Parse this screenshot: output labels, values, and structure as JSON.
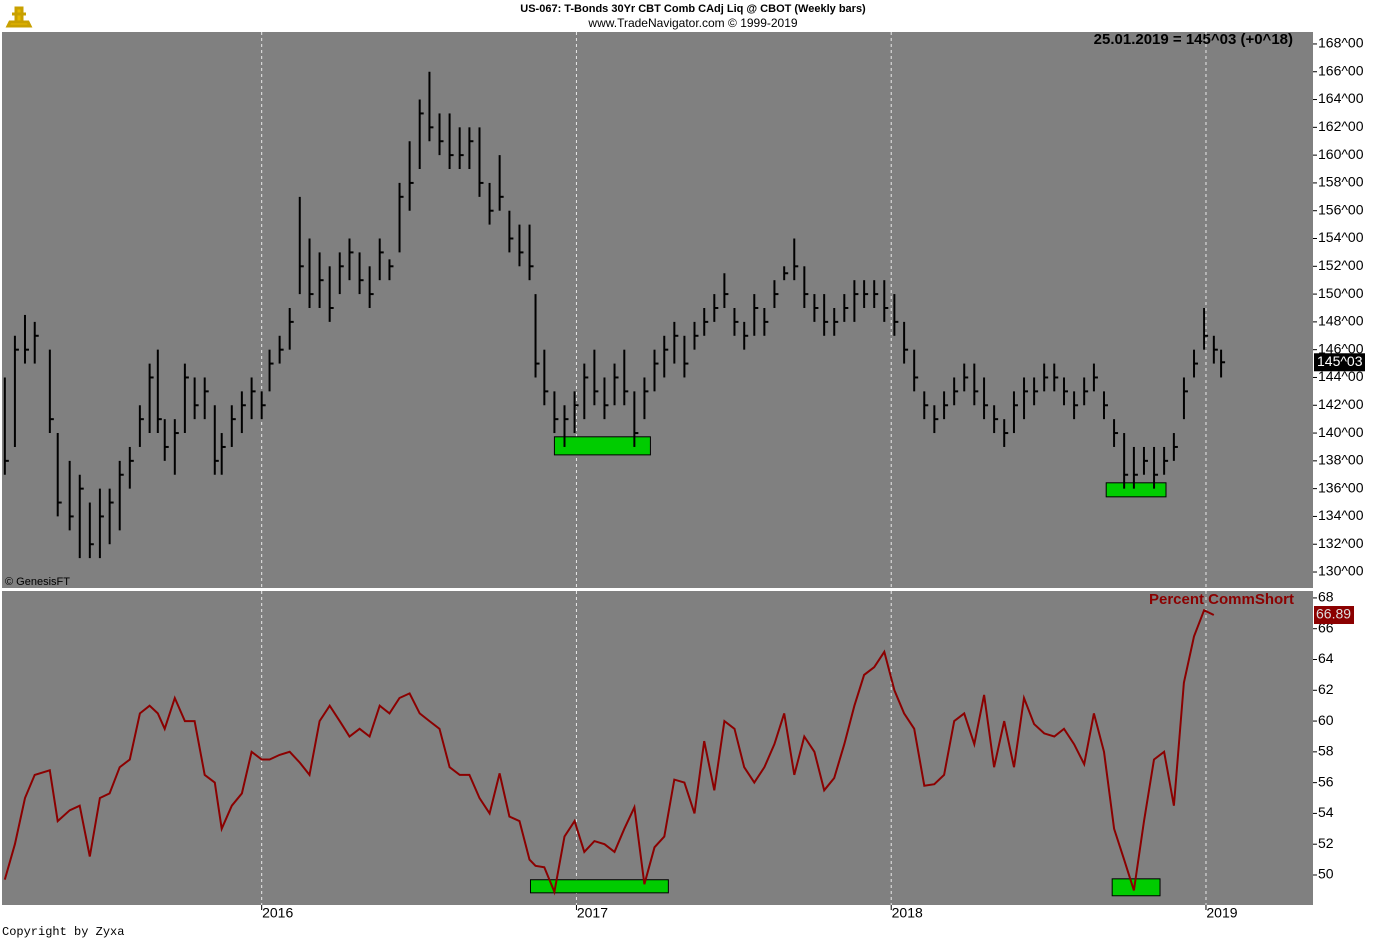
{
  "chart_data": [
    {
      "type": "ohlc",
      "title": "US-067:  T-Bonds 30Yr CBT Comb CAdj Liq @ CBOT  (Weekly bars)",
      "subtitle": "www.TradeNavigator.com © 1999-2019",
      "readout": "25.01.2019 = 145^03 (+0^18)",
      "watermark": "© GenesisFT",
      "color": "#000000",
      "x": [
        2015.184,
        2015.216,
        2015.248,
        2015.279,
        2015.327,
        2015.352,
        2015.39,
        2015.422,
        2015.454,
        2015.486,
        2015.517,
        2015.549,
        2015.581,
        2015.613,
        2015.644,
        2015.67,
        2015.692,
        2015.724,
        2015.756,
        2015.787,
        2015.819,
        2015.851,
        2015.873,
        2015.905,
        2015.937,
        2015.968,
        2016.0,
        2016.025,
        2016.057,
        2016.089,
        2016.121,
        2016.152,
        2016.184,
        2016.216,
        2016.248,
        2016.279,
        2016.311,
        2016.343,
        2016.375,
        2016.406,
        2016.438,
        2016.47,
        2016.502,
        2016.533,
        2016.565,
        2016.597,
        2016.629,
        2016.66,
        2016.692,
        2016.724,
        2016.756,
        2016.787,
        2016.819,
        2016.851,
        2016.87,
        2016.898,
        2016.93,
        2016.962,
        2016.994,
        2017.025,
        2017.057,
        2017.089,
        2017.121,
        2017.152,
        2017.184,
        2017.216,
        2017.248,
        2017.279,
        2017.311,
        2017.343,
        2017.375,
        2017.406,
        2017.438,
        2017.47,
        2017.502,
        2017.533,
        2017.565,
        2017.597,
        2017.629,
        2017.66,
        2017.692,
        2017.724,
        2017.756,
        2017.787,
        2017.819,
        2017.851,
        2017.883,
        2017.914,
        2017.946,
        2017.978,
        2018.01,
        2018.041,
        2018.073,
        2018.105,
        2018.137,
        2018.168,
        2018.2,
        2018.232,
        2018.264,
        2018.295,
        2018.327,
        2018.359,
        2018.39,
        2018.422,
        2018.454,
        2018.486,
        2018.518,
        2018.549,
        2018.581,
        2018.613,
        2018.644,
        2018.676,
        2018.708,
        2018.74,
        2018.771,
        2018.803,
        2018.835,
        2018.867,
        2018.898,
        2018.93,
        2018.962,
        2018.994,
        2019.025,
        2019.048
      ],
      "high": [
        144,
        147,
        148.5,
        148,
        146,
        140,
        138,
        137,
        135,
        136,
        136,
        138,
        139,
        142,
        145,
        146,
        141,
        141,
        145,
        144,
        144,
        142,
        140,
        142,
        143,
        144,
        143,
        146,
        147,
        149,
        157,
        154,
        153,
        152,
        153,
        154,
        153,
        152,
        154,
        152.5,
        158,
        161,
        164,
        166,
        163,
        163,
        162,
        162,
        162,
        158,
        160,
        156,
        155,
        155,
        150,
        146,
        143,
        142,
        143,
        145,
        146,
        144,
        145,
        146,
        143,
        144,
        146,
        147,
        148,
        147,
        148,
        149,
        150,
        151.5,
        149,
        148,
        150,
        149,
        151,
        152,
        154,
        152,
        150,
        150,
        149,
        150,
        151,
        151,
        151,
        151,
        150,
        148,
        146,
        143,
        142,
        143,
        144,
        145,
        145,
        144,
        142,
        141,
        143,
        144,
        144,
        145,
        145,
        144,
        143,
        144,
        145,
        143,
        141,
        140,
        139,
        139,
        139,
        139,
        140,
        144,
        146,
        149,
        147,
        146
      ],
      "low": [
        137,
        139,
        145,
        145,
        140,
        134,
        133,
        131,
        131,
        131,
        132,
        133,
        136,
        139,
        140,
        140,
        138,
        137,
        140,
        141,
        141,
        137,
        137,
        139,
        140,
        141,
        141,
        143,
        145,
        146,
        150,
        149,
        149,
        148,
        150,
        151,
        150,
        149,
        151,
        151,
        153,
        156,
        159,
        161,
        160,
        159,
        159,
        159,
        157,
        155,
        156,
        153,
        152,
        151,
        144,
        142,
        140,
        139,
        140,
        141,
        142,
        141,
        142,
        142,
        139,
        141,
        143,
        144,
        145,
        144,
        146,
        147,
        148,
        149,
        147,
        146,
        147,
        147,
        149,
        151,
        151,
        149,
        148,
        147,
        147,
        148,
        148,
        149,
        149,
        148,
        147,
        145,
        143,
        141,
        140,
        141,
        142,
        143,
        142,
        141,
        140,
        139,
        140,
        141,
        142,
        143,
        143,
        142,
        141,
        142,
        143,
        141,
        139,
        136,
        136,
        137,
        136,
        137,
        138,
        141,
        144,
        146,
        145,
        144
      ],
      "close": [
        138,
        146,
        146,
        147,
        141,
        135,
        134,
        136,
        132,
        134,
        135,
        137,
        138,
        141,
        144,
        141,
        139,
        140,
        144,
        142,
        143,
        138,
        139,
        141,
        142,
        143,
        142,
        145,
        146,
        148,
        152,
        150,
        151,
        149,
        152,
        153,
        151,
        150,
        153,
        152,
        157,
        158,
        163,
        162,
        161,
        160,
        160,
        161,
        158,
        156,
        157,
        154,
        153,
        152,
        145,
        143,
        141,
        141,
        142,
        144,
        143,
        142,
        144,
        143,
        140,
        143,
        145,
        146,
        147,
        145,
        147,
        148,
        149,
        150,
        148,
        147,
        149,
        148,
        150,
        151.5,
        152,
        150,
        149,
        148,
        148,
        149,
        150,
        150,
        150,
        149,
        148,
        146,
        144,
        142,
        141,
        142,
        143,
        144,
        143,
        142,
        141,
        140,
        142,
        143,
        143,
        144,
        144,
        143,
        142,
        143,
        144,
        142,
        140,
        137,
        137,
        138,
        137,
        138,
        139,
        143,
        145,
        147,
        146,
        145.09375
      ],
      "last_value": {
        "value": 145.09375,
        "label": "145^03"
      },
      "xlim": [
        2015.175,
        2019.34
      ],
      "xticks": [
        2016,
        2017,
        2018,
        2019
      ],
      "ylim": [
        128.85,
        168.86
      ],
      "yticks": [
        {
          "value": 130,
          "label": "130^00"
        },
        {
          "value": 132,
          "label": "132^00"
        },
        {
          "value": 134,
          "label": "134^00"
        },
        {
          "value": 136,
          "label": "136^00"
        },
        {
          "value": 138,
          "label": "138^00"
        },
        {
          "value": 140,
          "label": "140^00"
        },
        {
          "value": 142,
          "label": "142^00"
        },
        {
          "value": 144,
          "label": "144^00"
        },
        {
          "value": 146,
          "label": "146^00"
        },
        {
          "value": 148,
          "label": "148^00"
        },
        {
          "value": 150,
          "label": "150^00"
        },
        {
          "value": 152,
          "label": "152^00"
        },
        {
          "value": 154,
          "label": "154^00"
        },
        {
          "value": 156,
          "label": "156^00"
        },
        {
          "value": 158,
          "label": "158^00"
        },
        {
          "value": 160,
          "label": "160^00"
        },
        {
          "value": 162,
          "label": "162^00"
        },
        {
          "value": 164,
          "label": "164^00"
        },
        {
          "value": 166,
          "label": "166^00"
        },
        {
          "value": 168,
          "label": "168^00"
        }
      ],
      "highlight_color": "#00cc00",
      "highlights": [
        {
          "x": [
            2016.93,
            2017.235
          ],
          "y": [
            138.43,
            139.73
          ]
        },
        {
          "x": [
            2018.683,
            2018.873
          ],
          "y": [
            135.41,
            136.42
          ]
        }
      ]
    },
    {
      "type": "line",
      "label": "Percent CommShort",
      "color": "#8b0000",
      "x": [
        2015.184,
        2015.216,
        2015.248,
        2015.279,
        2015.327,
        2015.352,
        2015.39,
        2015.422,
        2015.454,
        2015.486,
        2015.517,
        2015.549,
        2015.581,
        2015.613,
        2015.644,
        2015.67,
        2015.692,
        2015.724,
        2015.756,
        2015.787,
        2015.819,
        2015.851,
        2015.873,
        2015.905,
        2015.937,
        2015.968,
        2016.0,
        2016.025,
        2016.057,
        2016.089,
        2016.121,
        2016.152,
        2016.184,
        2016.216,
        2016.248,
        2016.279,
        2016.311,
        2016.343,
        2016.375,
        2016.406,
        2016.438,
        2016.47,
        2016.502,
        2016.533,
        2016.565,
        2016.597,
        2016.629,
        2016.66,
        2016.692,
        2016.724,
        2016.756,
        2016.787,
        2016.819,
        2016.851,
        2016.87,
        2016.898,
        2016.93,
        2016.962,
        2016.994,
        2017.025,
        2017.057,
        2017.089,
        2017.121,
        2017.152,
        2017.184,
        2017.216,
        2017.248,
        2017.279,
        2017.311,
        2017.343,
        2017.375,
        2017.406,
        2017.438,
        2017.47,
        2017.502,
        2017.533,
        2017.565,
        2017.597,
        2017.629,
        2017.66,
        2017.692,
        2017.724,
        2017.756,
        2017.787,
        2017.819,
        2017.851,
        2017.883,
        2017.914,
        2017.946,
        2017.978,
        2018.01,
        2018.041,
        2018.073,
        2018.105,
        2018.137,
        2018.168,
        2018.2,
        2018.232,
        2018.264,
        2018.295,
        2018.327,
        2018.359,
        2018.39,
        2018.422,
        2018.454,
        2018.486,
        2018.518,
        2018.549,
        2018.581,
        2018.613,
        2018.644,
        2018.676,
        2018.708,
        2018.74,
        2018.771,
        2018.803,
        2018.835,
        2018.867,
        2018.898,
        2018.93,
        2018.962,
        2018.994,
        2019.025,
        2019.048
      ],
      "values": [
        49.7,
        52,
        55,
        56.5,
        56.8,
        53.5,
        54.2,
        54.5,
        51.2,
        55,
        55.3,
        57,
        57.5,
        60.5,
        61,
        60.5,
        59.5,
        61.5,
        60,
        60,
        56.5,
        56,
        53,
        54.5,
        55.3,
        58,
        57.5,
        57.5,
        57.8,
        58,
        57.3,
        56.5,
        60,
        61,
        60,
        59,
        59.5,
        59,
        61,
        60.5,
        61.5,
        61.8,
        60.5,
        60,
        59.5,
        57,
        56.5,
        56.5,
        55,
        54,
        56.6,
        53.8,
        53.5,
        51,
        50.6,
        50.5,
        48.9,
        52.5,
        53.5,
        51.5,
        52.2,
        52,
        51.5,
        53,
        54.4,
        49.4,
        51.8,
        52.5,
        56.2,
        56,
        54,
        58.7,
        55.5,
        60,
        59.5,
        57,
        56,
        57,
        58.5,
        60.5,
        56.5,
        59,
        58,
        55.5,
        56.3,
        58.5,
        61,
        63,
        63.5,
        64.5,
        62,
        60.5,
        59.5,
        55.8,
        55.9,
        56.5,
        60,
        60.5,
        58.5,
        61.7,
        57,
        60,
        57,
        61.5,
        59.8,
        59.2,
        59,
        59.5,
        58.5,
        57.2,
        60.5,
        58,
        53,
        51,
        49,
        53.5,
        57.5,
        58,
        54.5,
        62.5,
        65.5,
        67.2,
        66.89,
        null
      ],
      "xlim": [
        2015.175,
        2019.34
      ],
      "xticks": [
        2016,
        2017,
        2018,
        2019
      ],
      "ylim": [
        48.05,
        68.45
      ],
      "yticks": [
        50,
        52,
        54,
        56,
        58,
        60,
        62,
        64,
        66,
        68
      ],
      "highlight_color": "#00cc00",
      "highlights": [
        {
          "x": [
            2016.854,
            2017.292
          ],
          "y": [
            48.84,
            49.69
          ]
        },
        {
          "x": [
            2018.702,
            2018.854
          ],
          "y": [
            48.65,
            49.75
          ]
        }
      ]
    }
  ],
  "footer": "Copyright by Zyxa"
}
